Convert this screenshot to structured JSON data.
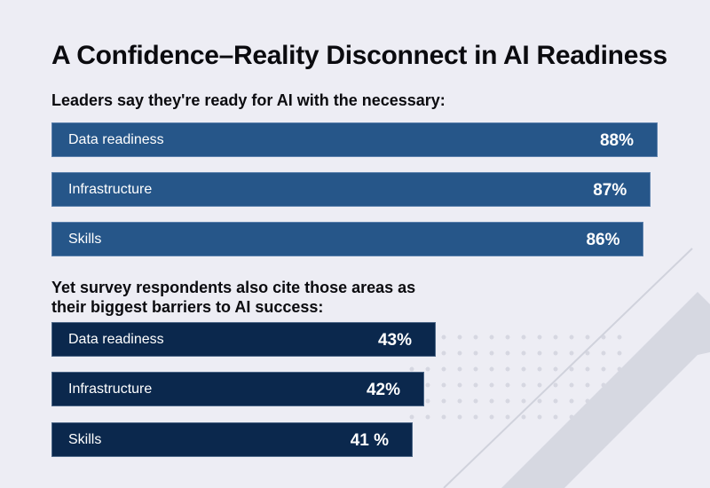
{
  "colors": {
    "background": "#ededf4",
    "confidence_bar": "#265689",
    "barrier_bar": "#0b284d",
    "text": "#0b0b0f"
  },
  "chart_data": {
    "type": "bar",
    "orientation": "horizontal",
    "title": "A Confidence–Reality Disconnect in AI Readiness",
    "xlim": [
      0,
      100
    ],
    "grid": false,
    "groups": [
      {
        "name": "Leaders say they're ready for AI with the necessary:",
        "categories": [
          "Data readiness",
          "Infrastructure",
          "Skills"
        ],
        "values": [
          88,
          87,
          86
        ],
        "labels": [
          "88%",
          "87%",
          "86%"
        ]
      },
      {
        "name": "Yet survey respondents also cite those areas as their biggest barriers to AI success:",
        "categories": [
          "Data readiness",
          "Infrastructure",
          "Skills"
        ],
        "values": [
          43,
          42,
          41
        ],
        "labels": [
          "43%",
          "42%",
          "41 %"
        ]
      }
    ]
  }
}
